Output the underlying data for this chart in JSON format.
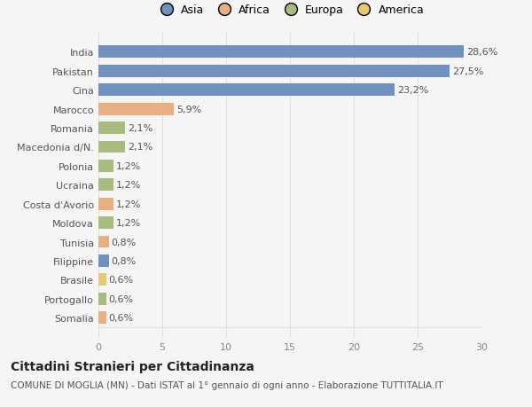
{
  "categories": [
    "India",
    "Pakistan",
    "Cina",
    "Marocco",
    "Romania",
    "Macedonia d/N.",
    "Polonia",
    "Ucraina",
    "Costa d'Avorio",
    "Moldova",
    "Tunisia",
    "Filippine",
    "Brasile",
    "Portogallo",
    "Somalia"
  ],
  "values": [
    28.6,
    27.5,
    23.2,
    5.9,
    2.1,
    2.1,
    1.2,
    1.2,
    1.2,
    1.2,
    0.8,
    0.8,
    0.6,
    0.6,
    0.6
  ],
  "labels": [
    "28,6%",
    "27,5%",
    "23,2%",
    "5,9%",
    "2,1%",
    "2,1%",
    "1,2%",
    "1,2%",
    "1,2%",
    "1,2%",
    "0,8%",
    "0,8%",
    "0,6%",
    "0,6%",
    "0,6%"
  ],
  "colors": [
    "#7090c0",
    "#7090c0",
    "#7090c0",
    "#e8b080",
    "#a8bc80",
    "#a8bc80",
    "#a8bc80",
    "#a8bc80",
    "#e8b080",
    "#a8bc80",
    "#e8b080",
    "#7090c0",
    "#e8c870",
    "#a8bc80",
    "#e8b080"
  ],
  "legend_labels": [
    "Asia",
    "Africa",
    "Europa",
    "America"
  ],
  "legend_colors": [
    "#7090c0",
    "#e8b080",
    "#a8bc80",
    "#e8c870"
  ],
  "title": "Cittadini Stranieri per Cittadinanza",
  "subtitle": "COMUNE DI MOGLIA (MN) - Dati ISTAT al 1° gennaio di ogni anno - Elaborazione TUTTITALIA.IT",
  "xlim": [
    0,
    30
  ],
  "xticks": [
    0,
    5,
    10,
    15,
    20,
    25,
    30
  ],
  "background_color": "#f5f5f5",
  "grid_color": "#e0e0e0",
  "bar_height": 0.65,
  "title_fontsize": 10,
  "subtitle_fontsize": 7.5,
  "tick_fontsize": 8,
  "label_fontsize": 8,
  "legend_fontsize": 9
}
